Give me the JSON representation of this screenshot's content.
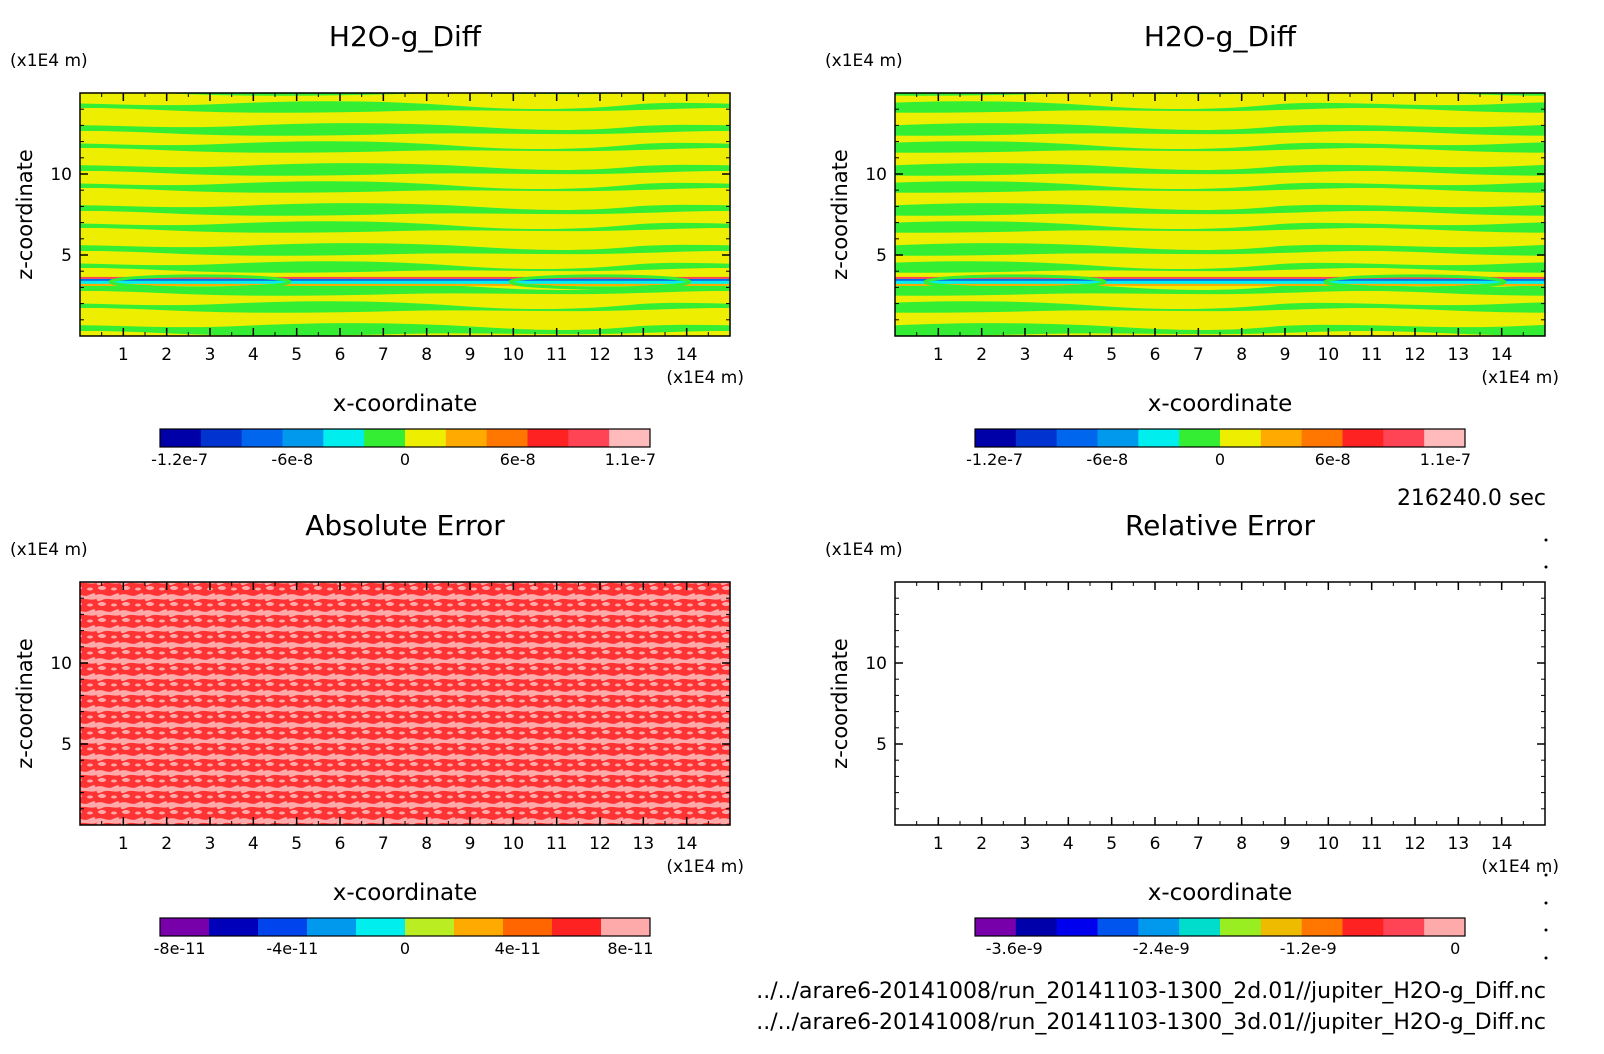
{
  "time_label": "216240.0 sec",
  "file_paths": [
    "../../arare6-20141008/run_20141103-1300_2d.01//jupiter_H2O-g_Diff.nc",
    "../../arare6-20141008/run_20141103-1300_3d.01//jupiter_H2O-g_Diff.nc"
  ],
  "chart_data": [
    {
      "type": "heatmap",
      "title": "H2O-g_Diff",
      "xlabel": "x-coordinate",
      "ylabel": "z-coordinate",
      "x_unit": "(x1E4 m)",
      "y_unit": "(x1E4 m)",
      "xlim": [
        0,
        15
      ],
      "ylim": [
        0,
        15
      ],
      "x_ticks": [
        "1",
        "2",
        "3",
        "4",
        "5",
        "6",
        "7",
        "8",
        "9",
        "10",
        "11",
        "12",
        "13",
        "14"
      ],
      "y_ticks": [
        "5",
        "10"
      ],
      "colorbar": {
        "colors": [
          "#0000a8",
          "#0033d0",
          "#0066ee",
          "#0099ee",
          "#00eeee",
          "#33ee33",
          "#eeee00",
          "#ffaa00",
          "#ff7700",
          "#ff2222",
          "#ff4455",
          "#ffbbbb"
        ],
        "tick_labels": [
          "-1.2e-7",
          "-6e-8",
          "0",
          "6e-8",
          "1.1e-7"
        ]
      },
      "dominant_colors": [
        "#33ee33",
        "#eeee00"
      ]
    },
    {
      "type": "heatmap",
      "title": "H2O-g_Diff",
      "xlabel": "x-coordinate",
      "ylabel": "z-coordinate",
      "x_unit": "(x1E4 m)",
      "y_unit": "(x1E4 m)",
      "xlim": [
        0,
        15
      ],
      "ylim": [
        0,
        15
      ],
      "x_ticks": [
        "1",
        "2",
        "3",
        "4",
        "5",
        "6",
        "7",
        "8",
        "9",
        "10",
        "11",
        "12",
        "13",
        "14"
      ],
      "y_ticks": [
        "5",
        "10"
      ],
      "colorbar": {
        "colors": [
          "#0000a8",
          "#0033d0",
          "#0066ee",
          "#0099ee",
          "#00eeee",
          "#33ee33",
          "#eeee00",
          "#ffaa00",
          "#ff7700",
          "#ff2222",
          "#ff4455",
          "#ffbbbb"
        ],
        "tick_labels": [
          "-1.2e-7",
          "-6e-8",
          "0",
          "6e-8",
          "1.1e-7"
        ]
      },
      "dominant_colors": [
        "#33ee33",
        "#eeee00"
      ]
    },
    {
      "type": "heatmap",
      "title": "Absolute Error",
      "xlabel": "x-coordinate",
      "ylabel": "z-coordinate",
      "x_unit": "(x1E4 m)",
      "y_unit": "(x1E4 m)",
      "xlim": [
        0,
        15
      ],
      "ylim": [
        0,
        15
      ],
      "x_ticks": [
        "1",
        "2",
        "3",
        "4",
        "5",
        "6",
        "7",
        "8",
        "9",
        "10",
        "11",
        "12",
        "13",
        "14"
      ],
      "y_ticks": [
        "5",
        "10"
      ],
      "colorbar": {
        "colors": [
          "#7700aa",
          "#0000bb",
          "#0044ee",
          "#0099ee",
          "#00eeee",
          "#bbee22",
          "#ffaa00",
          "#ff6600",
          "#ff2222",
          "#ffaaaa"
        ],
        "tick_labels": [
          "-8e-11",
          "-4e-11",
          "0",
          "4e-11",
          "8e-11"
        ]
      },
      "dominant_colors": [
        "#00eeee",
        "#bbee22"
      ]
    },
    {
      "type": "heatmap",
      "title": "Relative Error",
      "xlabel": "x-coordinate",
      "ylabel": "z-coordinate",
      "x_unit": "(x1E4 m)",
      "y_unit": "(x1E4 m)",
      "xlim": [
        0,
        15
      ],
      "ylim": [
        0,
        15
      ],
      "x_ticks": [
        "1",
        "2",
        "3",
        "4",
        "5",
        "6",
        "7",
        "8",
        "9",
        "10",
        "11",
        "12",
        "13",
        "14"
      ],
      "y_ticks": [
        "5",
        "10"
      ],
      "colorbar": {
        "colors": [
          "#7700aa",
          "#0000aa",
          "#0000ee",
          "#0055ee",
          "#0099ee",
          "#00ddcc",
          "#99ee22",
          "#eebb00",
          "#ff7700",
          "#ff2222",
          "#ff4455",
          "#ffaaaa"
        ],
        "tick_labels": [
          "-3.6e-9",
          "-2.4e-9",
          "-1.2e-9",
          "0"
        ]
      },
      "dominant_colors": [
        "#ff3333",
        "#ffaaaa"
      ]
    }
  ]
}
